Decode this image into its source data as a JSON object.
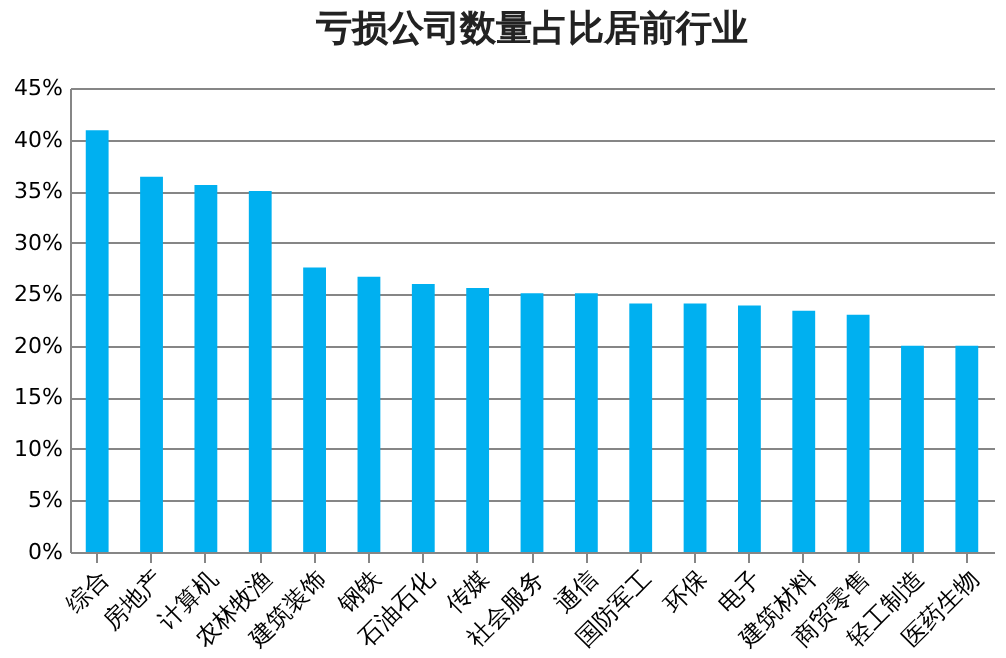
{
  "chart_data": {
    "type": "bar",
    "title": "亏损公司数量占比居前行业",
    "categories": [
      "综合",
      "房地产",
      "计算机",
      "农林牧渔",
      "建筑装饰",
      "钢铁",
      "石油石化",
      "传媒",
      "社会服务",
      "通信",
      "国防军工",
      "环保",
      "电子",
      "建筑材料",
      "商贸零售",
      "轻工制造",
      "医药生物"
    ],
    "values": [
      40.9,
      36.4,
      35.6,
      35.0,
      27.6,
      26.7,
      26.0,
      25.6,
      25.1,
      25.1,
      24.1,
      24.1,
      23.9,
      23.4,
      23.0,
      20.0,
      20.0
    ],
    "color": "#00b0f0",
    "ylim": [
      0,
      45
    ],
    "yticks": [
      {
        "value": 0,
        "label": "0%"
      },
      {
        "value": 5,
        "label": "5%"
      },
      {
        "value": 10,
        "label": "10%"
      },
      {
        "value": 15,
        "label": "15%"
      },
      {
        "value": 20,
        "label": "20%"
      },
      {
        "value": 25,
        "label": "25%"
      },
      {
        "value": 30,
        "label": "30%"
      },
      {
        "value": 35,
        "label": "35%"
      },
      {
        "value": 40,
        "label": "40%"
      },
      {
        "value": 45,
        "label": "45%"
      }
    ],
    "grid": "y"
  }
}
